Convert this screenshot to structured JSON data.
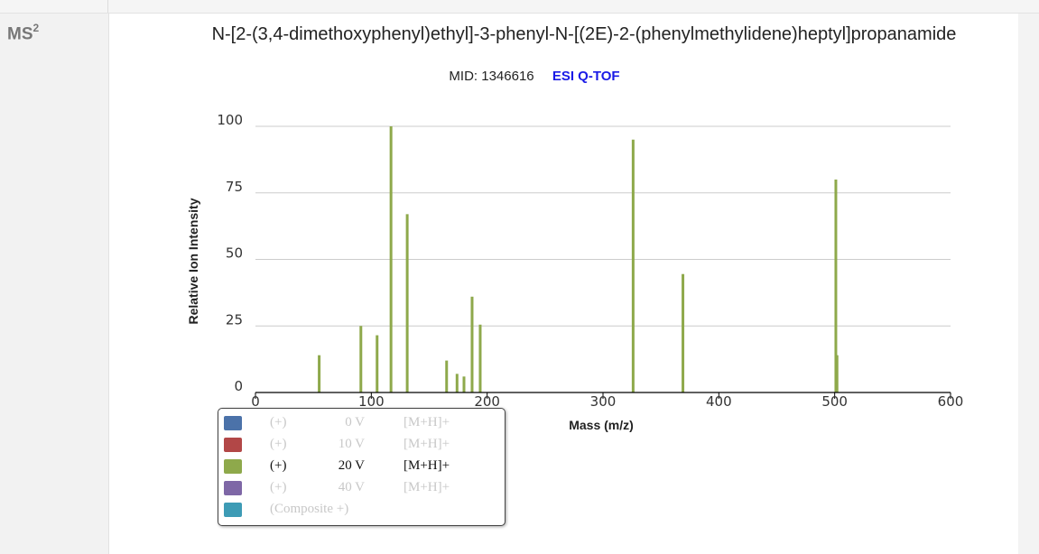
{
  "section": {
    "ms_label": "MS",
    "ms_level": "2"
  },
  "compound": {
    "name": "N-[2-(3,4-dimethoxyphenyl)ethyl]-3-phenyl-N-[(2E)-2-(phenylmethylidene)heptyl]propanamide"
  },
  "meta": {
    "mid": "MID: 1346616",
    "instrument": "ESI Q-TOF"
  },
  "legend": {
    "items": [
      {
        "color": "#4b72a9",
        "ion": "(+)",
        "voltage": "0 V",
        "adduct": "[M+H]+",
        "active": false
      },
      {
        "color": "#b24747",
        "ion": "(+)",
        "voltage": "10 V",
        "adduct": "[M+H]+",
        "active": false
      },
      {
        "color": "#8ea94b",
        "ion": "(+)",
        "voltage": "20 V",
        "adduct": "[M+H]+",
        "active": true
      },
      {
        "color": "#7e67a6",
        "ion": "(+)",
        "voltage": "40 V",
        "adduct": "[M+H]+",
        "active": false
      },
      {
        "color": "#3d9bb5",
        "ion": "(Composite +)",
        "voltage": "",
        "adduct": "",
        "active": false
      }
    ]
  },
  "chart_data": {
    "type": "bar",
    "xlabel": "Mass (m/z)",
    "ylabel": "Relative Ion Intensity",
    "xlim": [
      0,
      600
    ],
    "ylim": [
      0,
      100
    ],
    "xticks": [
      0,
      100,
      200,
      300,
      400,
      500,
      600
    ],
    "yticks": [
      0,
      25,
      50,
      75,
      100
    ],
    "grid": "horizontal",
    "series": [
      {
        "color": "#8ea94b",
        "x": [
          55,
          91,
          105,
          117,
          131,
          165,
          174,
          180,
          187,
          194,
          326,
          369,
          501,
          502
        ],
        "y": [
          14,
          25,
          21.5,
          100,
          67,
          12,
          7,
          6,
          36,
          25.5,
          95,
          44.5,
          80,
          14
        ]
      }
    ]
  }
}
